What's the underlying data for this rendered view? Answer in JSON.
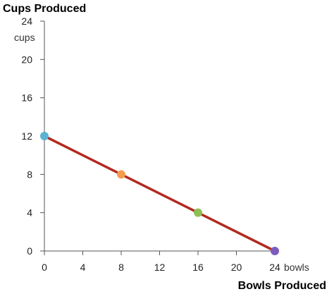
{
  "chart_data": {
    "type": "line",
    "title": "",
    "ylabel": "Cups Produced",
    "xlabel": "Bowls Produced",
    "y_unit": "cups",
    "x_unit": "bowls",
    "xlim": [
      0,
      24
    ],
    "ylim": [
      0,
      24
    ],
    "x_ticks": [
      0,
      4,
      8,
      12,
      16,
      20,
      24
    ],
    "y_ticks": [
      0,
      4,
      8,
      12,
      16,
      20,
      24
    ],
    "grid": false,
    "series": [
      {
        "x": [
          0,
          24
        ],
        "y": [
          12,
          0
        ],
        "color": "#b22a1f"
      }
    ],
    "points": [
      {
        "x": 0,
        "y": 12,
        "color": "#5bb3d3"
      },
      {
        "x": 8,
        "y": 8,
        "color": "#f39c4f"
      },
      {
        "x": 16,
        "y": 4,
        "color": "#8cc152"
      },
      {
        "x": 24,
        "y": 0,
        "color": "#7d5bbf"
      }
    ]
  }
}
